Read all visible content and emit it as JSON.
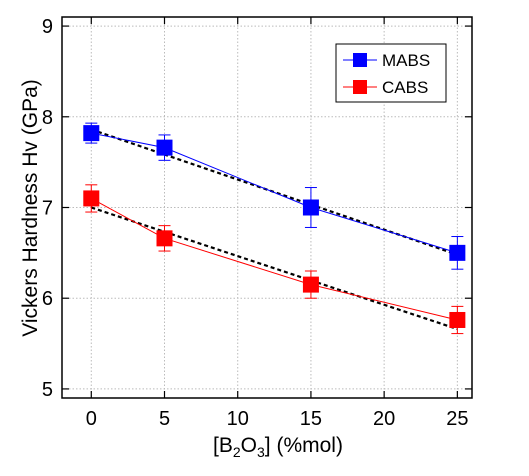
{
  "chart_data": {
    "type": "scatter",
    "xlabel_parts": [
      "[B",
      "2",
      "O",
      "3",
      "] (%mol)"
    ],
    "ylabel": "Vickers Hardness Hv (GPa)",
    "xlim": [
      -2,
      26
    ],
    "ylim": [
      4.9,
      9.1
    ],
    "xticks": [
      0,
      5,
      10,
      15,
      20,
      25
    ],
    "yticks": [
      5,
      6,
      7,
      8,
      9
    ],
    "grid": true,
    "legend_position": "top-right",
    "series": [
      {
        "name": "MABS",
        "color": "#0000ff",
        "marker": "square",
        "x": [
          0,
          5,
          15,
          25
        ],
        "y": [
          7.82,
          7.66,
          7.0,
          6.5
        ],
        "err": [
          0.11,
          0.14,
          0.22,
          0.18
        ],
        "fit": {
          "x": [
            0,
            25
          ],
          "y": [
            7.86,
            6.48
          ]
        }
      },
      {
        "name": "CABS",
        "color": "#ff0000",
        "marker": "square",
        "x": [
          0,
          5,
          15,
          25
        ],
        "y": [
          7.1,
          6.66,
          6.15,
          5.76
        ],
        "err": [
          0.15,
          0.14,
          0.15,
          0.15
        ],
        "fit": {
          "x": [
            0,
            25
          ],
          "y": [
            7.0,
            5.66
          ]
        }
      }
    ]
  }
}
